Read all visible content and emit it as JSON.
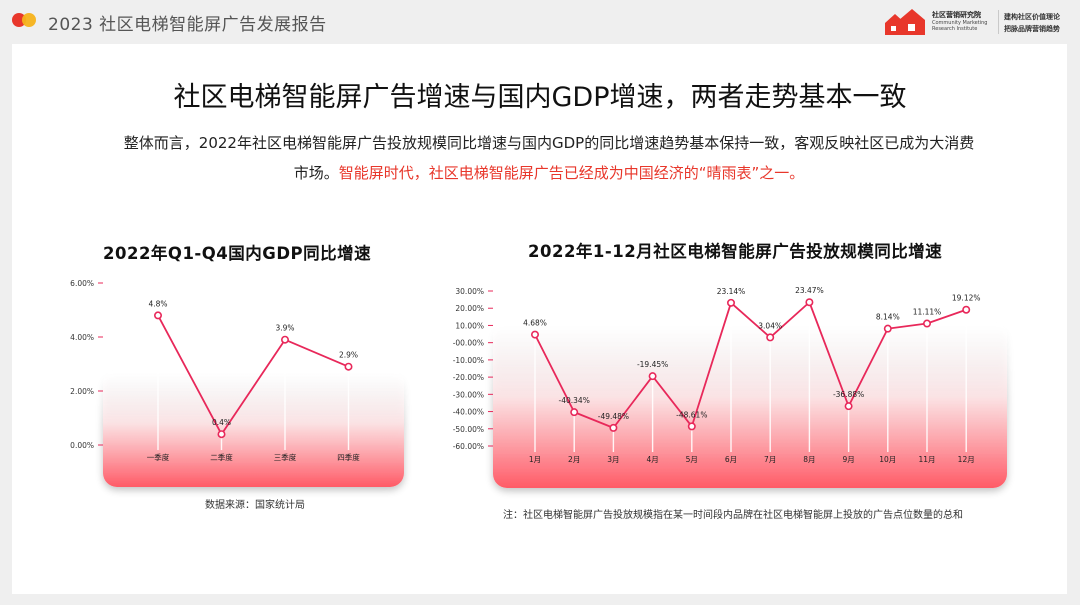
{
  "header": {
    "doc_title": "2023 社区电梯智能屏广告发展报告",
    "logo": {
      "org_name": "社区营销研究院",
      "org_name_en": "Community Marketing Research Institute",
      "slogan_line1": "建构社区价值理论",
      "slogan_line2": "把脉品牌营销趋势"
    },
    "colors": {
      "accent": "#e8372b",
      "secondary": "#f6b21a",
      "line": "#e8285a"
    }
  },
  "main": {
    "title": "社区电梯智能屏广告增速与国内GDP增速，两者走势基本一致",
    "intro_text": "整体而言，2022年社区电梯智能屏广告投放规模同比增速与国内GDP的同比增速趋势基本保持一致，客观反映社区已成为大消费市场。",
    "intro_highlight": "智能屏时代，社区电梯智能屏广告已经成为中国经济的“晴雨表”之一。"
  },
  "chart_data": [
    {
      "type": "line",
      "title": "2022年Q1-Q4国内GDP同比增速",
      "categories": [
        "一季度",
        "二季度",
        "三季度",
        "四季度"
      ],
      "values": [
        4.8,
        0.4,
        3.9,
        2.9
      ],
      "value_labels": [
        "4.8%",
        "0.4%",
        "3.9%",
        "2.9%"
      ],
      "ylim": [
        0,
        6
      ],
      "yticks": [
        0,
        2,
        4,
        6
      ],
      "ytick_labels": [
        "0.00%",
        "2.00%",
        "4.00%",
        "6.00%"
      ],
      "grid": false,
      "source": "数据来源：国家统计局"
    },
    {
      "type": "line",
      "title": "2022年1-12月社区电梯智能屏广告投放规模同比增速",
      "categories": [
        "1月",
        "2月",
        "3月",
        "4月",
        "5月",
        "6月",
        "7月",
        "8月",
        "9月",
        "10月",
        "11月",
        "12月"
      ],
      "values": [
        4.68,
        -40.34,
        -49.48,
        -19.45,
        -48.61,
        23.14,
        3.04,
        23.47,
        -36.88,
        8.14,
        11.11,
        19.12
      ],
      "value_labels": [
        "4.68%",
        "-40.34%",
        "-49.48%",
        "-19.45%",
        "-48.61%",
        "23.14%",
        "3.04%",
        "23.47%",
        "-36.88%",
        "8.14%",
        "11.11%",
        "19.12%"
      ],
      "ylim": [
        -60,
        30
      ],
      "yticks": [
        30,
        20,
        10,
        0,
        -10,
        -20,
        -30,
        -40,
        -50,
        -60
      ],
      "ytick_labels": [
        "30.00%",
        "20.00%",
        "10.00%",
        "-00.00%",
        "-10.00%",
        "-20.00%",
        "-30.00%",
        "-40.00%",
        "-50.00%",
        "-60.00%"
      ],
      "grid": false,
      "note": "注：社区电梯智能屏广告投放规模指在某一时间段内品牌在社区电梯智能屏上投放的广告点位数量的总和"
    }
  ]
}
